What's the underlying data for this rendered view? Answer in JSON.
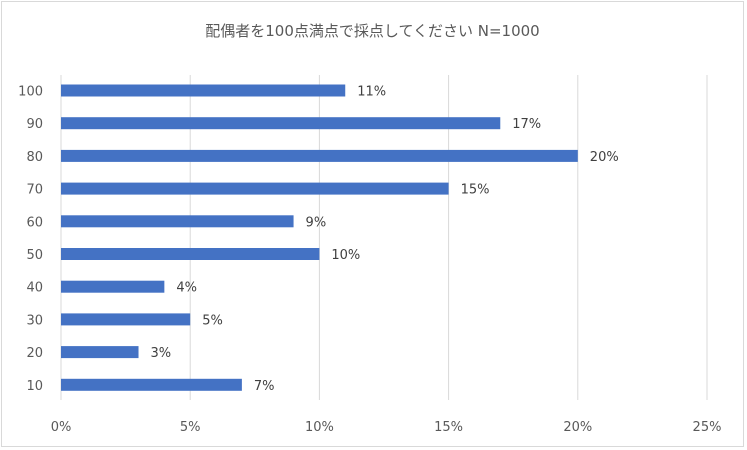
{
  "chart_data": {
    "type": "bar",
    "orientation": "horizontal",
    "title": "配偶者を100点満点で採点してください N=1000",
    "xlabel": "",
    "ylabel": "",
    "categories": [
      "100",
      "90",
      "80",
      "70",
      "60",
      "50",
      "40",
      "30",
      "20",
      "10"
    ],
    "values": [
      11,
      17,
      20,
      15,
      9,
      10,
      4,
      5,
      3,
      7
    ],
    "value_labels": [
      "11%",
      "17%",
      "20%",
      "15%",
      "9%",
      "10%",
      "4%",
      "5%",
      "3%",
      "7%"
    ],
    "xlim": [
      0,
      25
    ],
    "xticks": [
      0,
      5,
      10,
      15,
      20,
      25
    ],
    "xtick_labels": [
      "0%",
      "5%",
      "10%",
      "15%",
      "20%",
      "25%"
    ],
    "grid": "vertical",
    "legend": "none",
    "bar_color": "#4472c4",
    "grid_color": "#d9d9d9"
  }
}
